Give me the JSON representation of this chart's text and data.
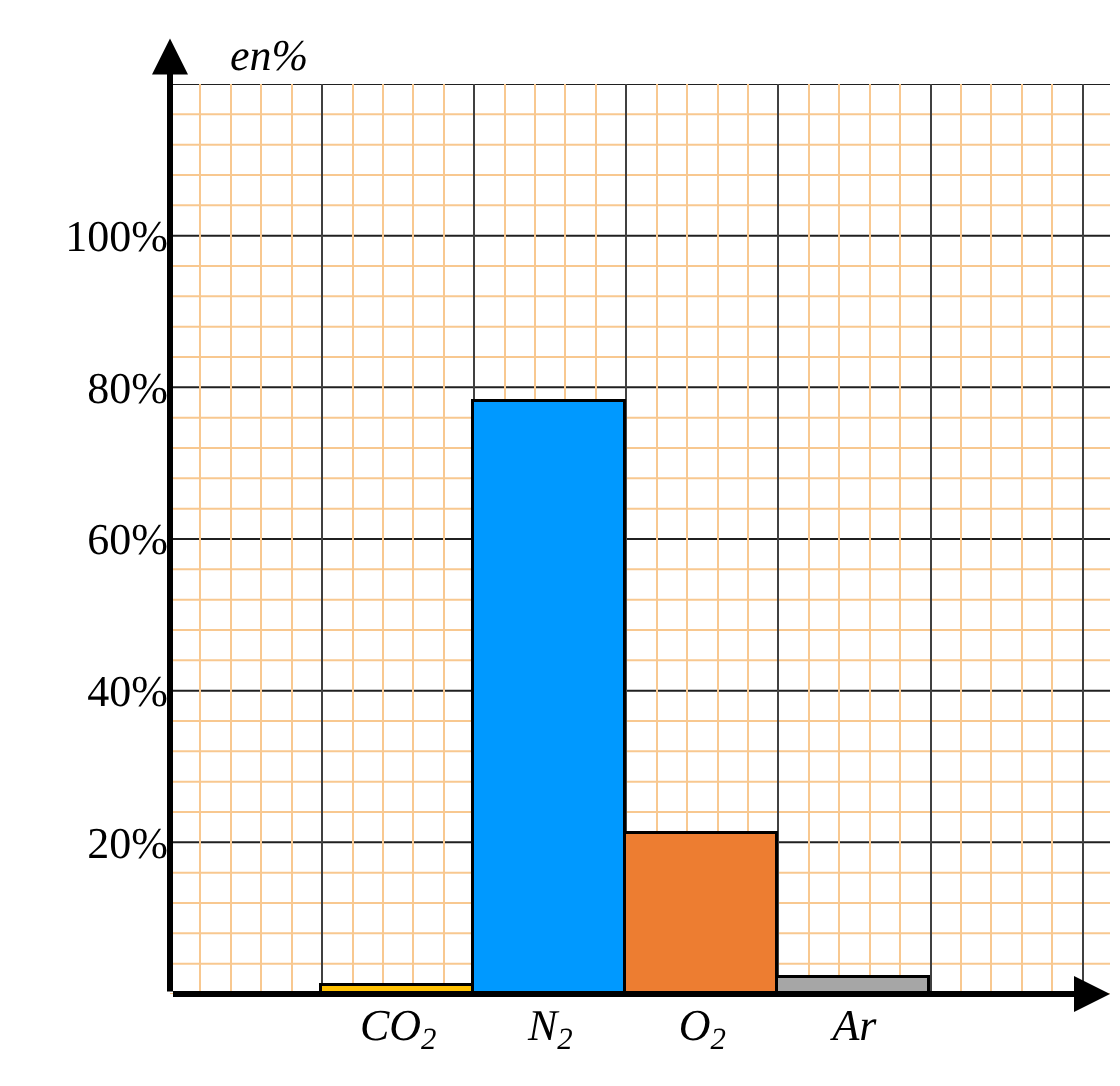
{
  "chart_data": {
    "type": "bar",
    "ylabel": "en%",
    "categories": [
      "CO$_{2}$",
      "N$_{2}$",
      "O$_{2}$",
      "Ar"
    ],
    "values": [
      1,
      78,
      21,
      2
    ],
    "colors": [
      "#ffc000",
      "#0099ff",
      "#ed7d31",
      "#a6a6a6"
    ],
    "ylim": [
      0,
      120
    ],
    "yticks": [
      {
        "value": 0,
        "label": null
      },
      {
        "value": 4,
        "label": null
      },
      {
        "value": 8,
        "label": null
      },
      {
        "value": 12,
        "label": null
      },
      {
        "value": 16,
        "label": null
      },
      {
        "value": 20,
        "label": "20%"
      },
      {
        "value": 24,
        "label": null
      },
      {
        "value": 28,
        "label": null
      },
      {
        "value": 32,
        "label": null
      },
      {
        "value": 36,
        "label": null
      },
      {
        "value": 40,
        "label": "40%"
      },
      {
        "value": 44,
        "label": null
      },
      {
        "value": 48,
        "label": null
      },
      {
        "value": 52,
        "label": null
      },
      {
        "value": 56,
        "label": null
      },
      {
        "value": 60,
        "label": "60%"
      },
      {
        "value": 64,
        "label": null
      },
      {
        "value": 68,
        "label": null
      },
      {
        "value": 72,
        "label": null
      },
      {
        "value": 76,
        "label": null
      },
      {
        "value": 80,
        "label": "80%"
      },
      {
        "value": 84,
        "label": null
      },
      {
        "value": 88,
        "label": null
      },
      {
        "value": 92,
        "label": null
      },
      {
        "value": 96,
        "label": null
      },
      {
        "value": 100,
        "label": "100%"
      },
      {
        "value": 104,
        "label": null
      },
      {
        "value": 108,
        "label": null
      },
      {
        "value": 112,
        "label": null
      },
      {
        "value": 116,
        "label": null
      },
      {
        "value": 120,
        "label": null
      }
    ],
    "grid": true
  }
}
